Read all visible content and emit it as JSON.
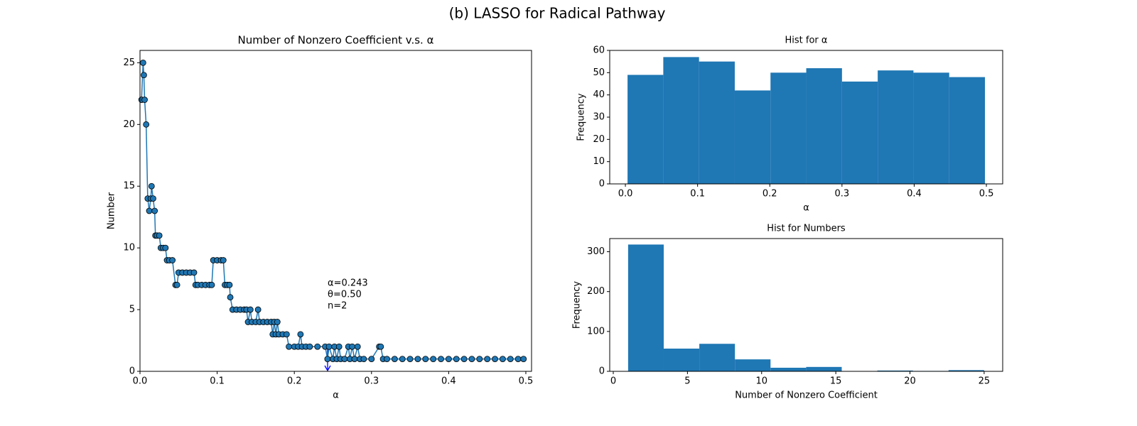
{
  "title": "(b) LASSO for Radical Pathway",
  "chart_data": [
    {
      "type": "line",
      "title": "Number of Nonzero Coefficient v.s. α",
      "x_label": "α",
      "y_label": "Number",
      "color": "#1f77b4",
      "x": [
        0.002,
        0.004,
        0.005,
        0.006,
        0.008,
        0.01,
        0.012,
        0.014,
        0.015,
        0.017,
        0.019,
        0.02,
        0.022,
        0.025,
        0.027,
        0.03,
        0.033,
        0.035,
        0.038,
        0.042,
        0.046,
        0.048,
        0.05,
        0.055,
        0.06,
        0.065,
        0.07,
        0.072,
        0.075,
        0.08,
        0.085,
        0.09,
        0.093,
        0.095,
        0.1,
        0.105,
        0.108,
        0.11,
        0.113,
        0.116,
        0.117,
        0.12,
        0.125,
        0.13,
        0.135,
        0.138,
        0.14,
        0.143,
        0.145,
        0.15,
        0.153,
        0.155,
        0.16,
        0.165,
        0.17,
        0.172,
        0.174,
        0.176,
        0.178,
        0.18,
        0.185,
        0.19,
        0.193,
        0.2,
        0.205,
        0.208,
        0.21,
        0.215,
        0.22,
        0.23,
        0.24,
        0.243,
        0.245,
        0.25,
        0.252,
        0.255,
        0.258,
        0.26,
        0.265,
        0.27,
        0.272,
        0.275,
        0.278,
        0.282,
        0.285,
        0.29,
        0.3,
        0.31,
        0.312,
        0.315,
        0.32,
        0.33,
        0.34,
        0.35,
        0.36,
        0.37,
        0.38,
        0.39,
        0.4,
        0.41,
        0.42,
        0.43,
        0.44,
        0.45,
        0.46,
        0.47,
        0.48,
        0.49,
        0.497
      ],
      "values": [
        22,
        25,
        24,
        22,
        20,
        14,
        13,
        14,
        15,
        14,
        13,
        11,
        11,
        11,
        10,
        10,
        10,
        9,
        9,
        9,
        7,
        7,
        8,
        8,
        8,
        8,
        8,
        7,
        7,
        7,
        7,
        7,
        7,
        9,
        9,
        9,
        9,
        7,
        7,
        7,
        6,
        5,
        5,
        5,
        5,
        5,
        4,
        5,
        4,
        4,
        5,
        4,
        4,
        4,
        4,
        3,
        4,
        3,
        4,
        3,
        3,
        3,
        2,
        2,
        2,
        3,
        2,
        2,
        2,
        2,
        2,
        1,
        2,
        1,
        2,
        1,
        2,
        1,
        1,
        2,
        1,
        2,
        1,
        2,
        1,
        1,
        1,
        2,
        2,
        1,
        1,
        1,
        1,
        1,
        1,
        1,
        1,
        1,
        1,
        1,
        1,
        1,
        1,
        1,
        1,
        1,
        1,
        1,
        1
      ],
      "xlim": [
        0,
        0.5074
      ],
      "ylim": [
        0,
        26
      ],
      "xticks": [
        {
          "value": 0,
          "label": "0.0"
        },
        0.1,
        0.2,
        0.3,
        0.4,
        0.5
      ],
      "yticks": [
        0,
        5,
        10,
        15,
        20,
        25
      ],
      "annotations": [
        "α=0.243",
        "θ=0.50",
        "n=2"
      ]
    },
    {
      "type": "histogram",
      "title": "Hist for α",
      "x_label": "α",
      "y_label": "Frequency",
      "color": "#1f77b4",
      "bins": [
        0.003,
        0.0525,
        0.102,
        0.1515,
        0.201,
        0.2505,
        0.3,
        0.3495,
        0.399,
        0.4485,
        0.498
      ],
      "counts": [
        49,
        57,
        55,
        42,
        50,
        52,
        46,
        51,
        50,
        48
      ],
      "xlim": [
        -0.0217,
        0.5226
      ],
      "ylim": [
        0,
        60
      ],
      "xticks": [
        {
          "value": 0,
          "label": "0.0"
        },
        0.1,
        0.2,
        0.3,
        0.4,
        0.5
      ],
      "yticks": [
        0,
        10,
        20,
        30,
        40,
        50,
        60
      ]
    },
    {
      "type": "histogram",
      "title": "Hist for Numbers",
      "x_label": "Number of Nonzero Coefficient",
      "y_label": "Frequency",
      "color": "#1f77b4",
      "bins": [
        1,
        3.4,
        5.8,
        8.2,
        10.6,
        13,
        15.4,
        17.8,
        20.2,
        22.6,
        25
      ],
      "counts": [
        318,
        57,
        69,
        30,
        9,
        11,
        0,
        2,
        1,
        3
      ],
      "xlim": [
        -0.24,
        26.25
      ],
      "ylim": [
        0,
        333
      ],
      "xticks": [
        0,
        5,
        10,
        15,
        20,
        25
      ],
      "yticks": [
        0,
        100,
        200,
        300
      ]
    }
  ]
}
